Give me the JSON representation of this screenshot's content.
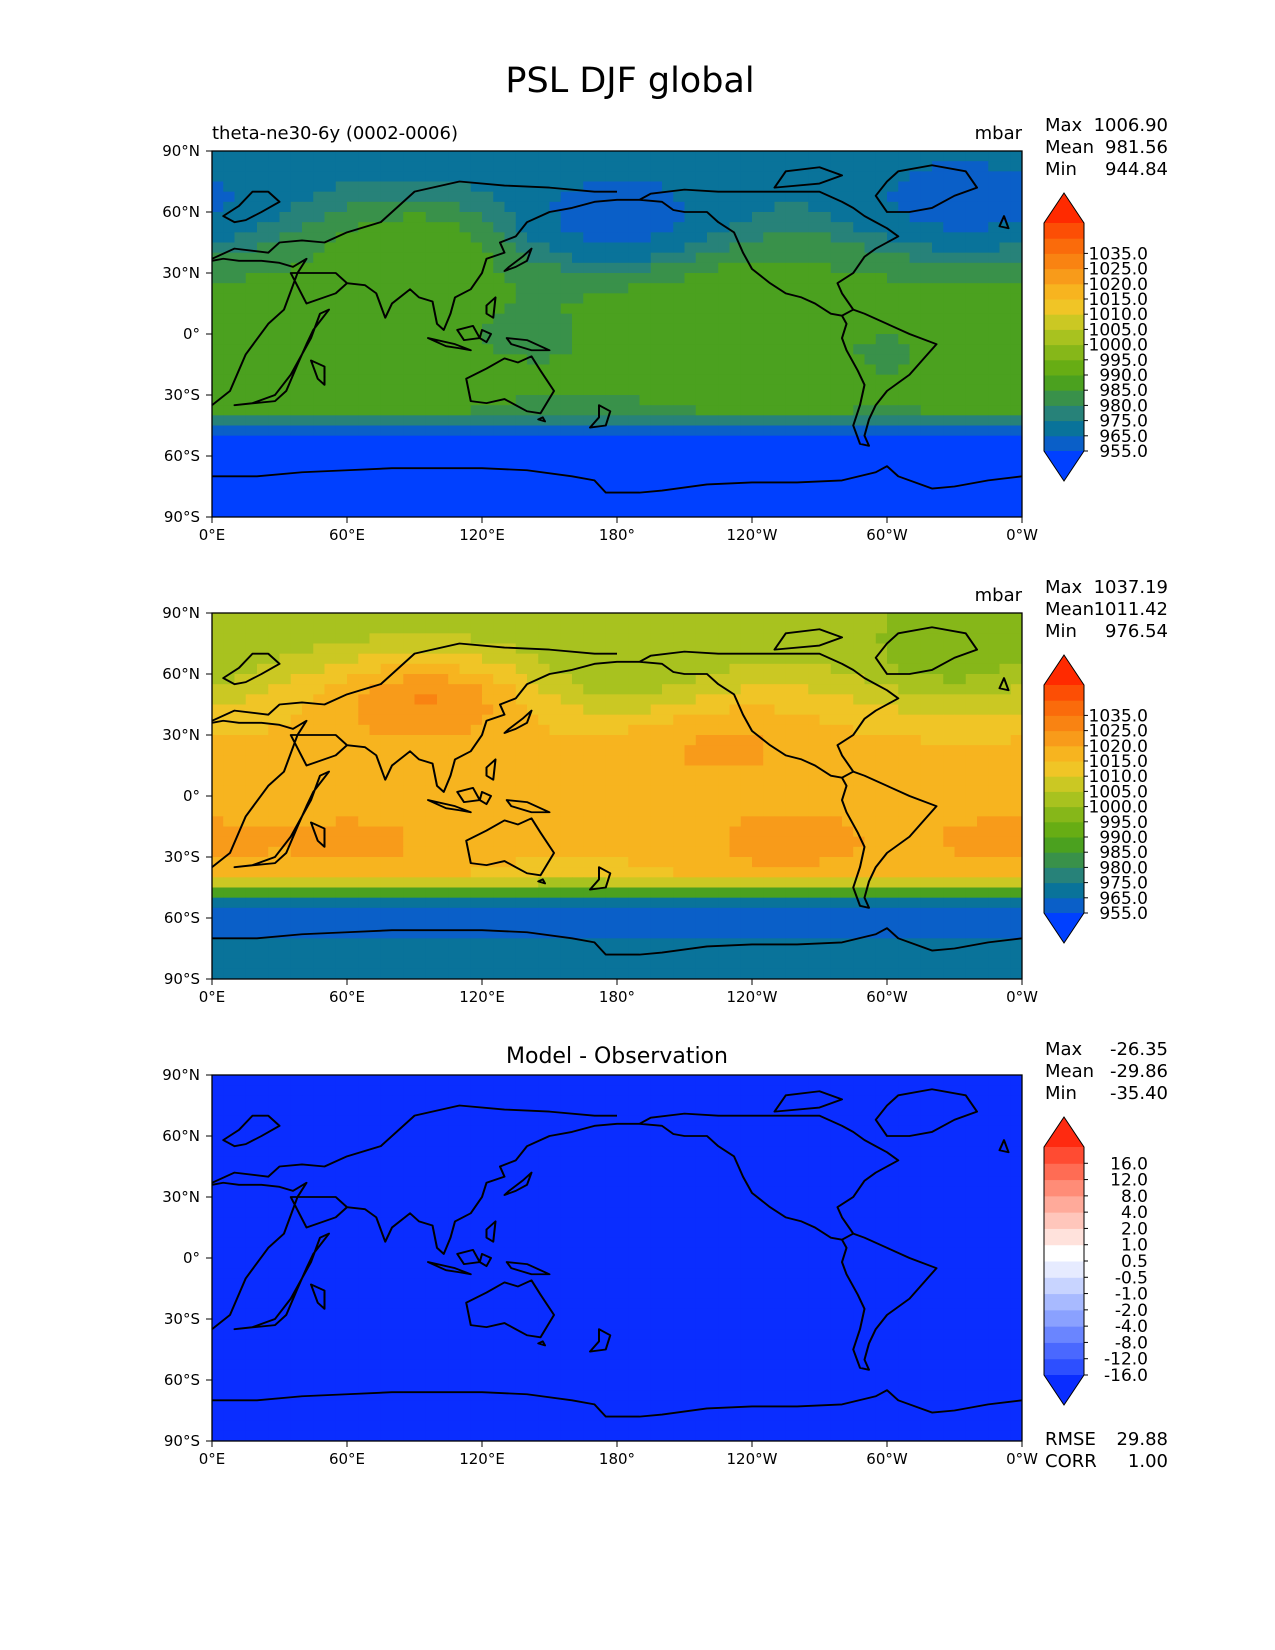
{
  "figure": {
    "title": "PSL DJF global"
  },
  "colors": {
    "continent_line": "#000000",
    "main_scale": [
      "#0040ff",
      "#0a5fc8",
      "#09739a",
      "#278279",
      "#39914a",
      "#4ba11f",
      "#67ad14",
      "#86b719",
      "#a8c21f",
      "#cbc823",
      "#f0c526",
      "#f7b41f",
      "#f89b1a",
      "#f98312",
      "#fa6b0b",
      "#fc4e05",
      "#ff2a00"
    ],
    "diff_scale": [
      "#0a2dff",
      "#2d4fff",
      "#4a68ff",
      "#6a85ff",
      "#8aa1ff",
      "#a8baff",
      "#c8d4ff",
      "#e6ebff",
      "#ffffff",
      "#ffe2dc",
      "#ffc6bb",
      "#ffaa9a",
      "#ff8c77",
      "#ff6c54",
      "#ff4b32",
      "#ff2a10"
    ]
  },
  "chart_data": [
    {
      "type": "heatmap",
      "panel": "test",
      "left_title": "theta-ne30-6y (0002-0006)",
      "center_title": "",
      "units": "mbar",
      "stats": [
        {
          "label": "Max",
          "value": "1006.90"
        },
        {
          "label": "Mean",
          "value": "981.56"
        },
        {
          "label": "Min",
          "value": "944.84"
        }
      ],
      "xticks": [
        "0°E",
        "60°E",
        "120°E",
        "180°",
        "120°W",
        "60°W",
        "0°W"
      ],
      "yticks": [
        "90°N",
        "60°N",
        "30°N",
        "0°",
        "30°S",
        "60°S",
        "90°S"
      ],
      "xlim": [
        0,
        360
      ],
      "ylim": [
        -90,
        90
      ],
      "colorbar": {
        "levels": [
          955,
          965,
          975,
          980,
          985,
          990,
          995,
          1000,
          1005,
          1010,
          1015,
          1020,
          1025,
          1035
        ],
        "labels": [
          "1035.0",
          "1025.0",
          "1020.0",
          "1015.0",
          "1010.0",
          "1005.0",
          "1000.0",
          "995.0",
          "990.0",
          "985.0",
          "980.0",
          "975.0",
          "965.0",
          "955.0"
        ]
      },
      "field": {
        "bias": -29.86,
        "features": [
          {
            "lon": 95,
            "lat": 50,
            "amp": 8
          },
          {
            "lon": 180,
            "lat": 55,
            "amp": -22
          },
          {
            "lon": 335,
            "lat": 62,
            "amp": -20
          },
          {
            "lon": 140,
            "lat": 0,
            "amp": -4
          },
          {
            "lon": 300,
            "lat": -10,
            "amp": -4
          },
          {
            "lon": 230,
            "lat": 30,
            "amp": 3
          },
          {
            "lon": 250,
            "lat": -30,
            "amp": 3
          },
          {
            "lon": 345,
            "lat": -30,
            "amp": 3
          },
          {
            "lon": 80,
            "lat": -32,
            "amp": 3
          }
        ]
      }
    },
    {
      "type": "heatmap",
      "panel": "reference",
      "left_title": "",
      "center_title": "",
      "units": "mbar",
      "stats": [
        {
          "label": "Max",
          "value": "1037.19"
        },
        {
          "label": "Mean",
          "value": "1011.42"
        },
        {
          "label": "Min",
          "value": "976.54"
        }
      ],
      "xticks": [
        "0°E",
        "60°E",
        "120°E",
        "180°",
        "120°W",
        "60°W",
        "0°W"
      ],
      "yticks": [
        "90°N",
        "60°N",
        "30°N",
        "0°",
        "30°S",
        "60°S",
        "90°S"
      ],
      "xlim": [
        0,
        360
      ],
      "ylim": [
        -90,
        90
      ],
      "colorbar": {
        "levels": [
          955,
          965,
          975,
          980,
          985,
          990,
          995,
          1000,
          1005,
          1010,
          1015,
          1020,
          1025,
          1035
        ],
        "labels": [
          "1035.0",
          "1025.0",
          "1020.0",
          "1015.0",
          "1010.0",
          "1005.0",
          "1000.0",
          "995.0",
          "990.0",
          "985.0",
          "980.0",
          "975.0",
          "965.0",
          "955.0"
        ]
      },
      "field": {
        "bias": 0,
        "features": [
          {
            "lon": 95,
            "lat": 50,
            "amp": 14
          },
          {
            "lon": 185,
            "lat": 55,
            "amp": -8
          },
          {
            "lon": 330,
            "lat": 62,
            "amp": -9
          },
          {
            "lon": 140,
            "lat": 0,
            "amp": -2
          },
          {
            "lon": 225,
            "lat": 32,
            "amp": 6
          },
          {
            "lon": 255,
            "lat": -30,
            "amp": 6
          },
          {
            "lon": 350,
            "lat": -30,
            "amp": 5
          },
          {
            "lon": 70,
            "lat": -30,
            "amp": 5
          }
        ]
      }
    },
    {
      "type": "heatmap",
      "panel": "difference",
      "left_title": "",
      "center_title": "Model - Observation",
      "units": "",
      "stats": [
        {
          "label": "Max",
          "value": "-26.35"
        },
        {
          "label": "Mean",
          "value": "-29.86"
        },
        {
          "label": "Min",
          "value": "-35.40"
        }
      ],
      "metrics": [
        {
          "label": "RMSE",
          "value": "29.88"
        },
        {
          "label": "CORR",
          "value": "1.00"
        }
      ],
      "xticks": [
        "0°E",
        "60°E",
        "120°E",
        "180°",
        "120°W",
        "60°W",
        "0°W"
      ],
      "yticks": [
        "90°N",
        "60°N",
        "30°N",
        "0°",
        "30°S",
        "60°S",
        "90°S"
      ],
      "xlim": [
        0,
        360
      ],
      "ylim": [
        -90,
        90
      ],
      "colorbar": {
        "levels": [
          -16,
          -12,
          -8,
          -4,
          -2,
          -1,
          -0.5,
          0.5,
          1,
          2,
          4,
          8,
          12,
          16
        ],
        "labels": [
          "16.0",
          "12.0",
          "8.0",
          "4.0",
          "2.0",
          "1.0",
          "0.5",
          "-0.5",
          "-1.0",
          "-2.0",
          "-4.0",
          "-8.0",
          "-12.0",
          "-16.0"
        ]
      },
      "field": {
        "uniform": -29.86
      }
    }
  ]
}
